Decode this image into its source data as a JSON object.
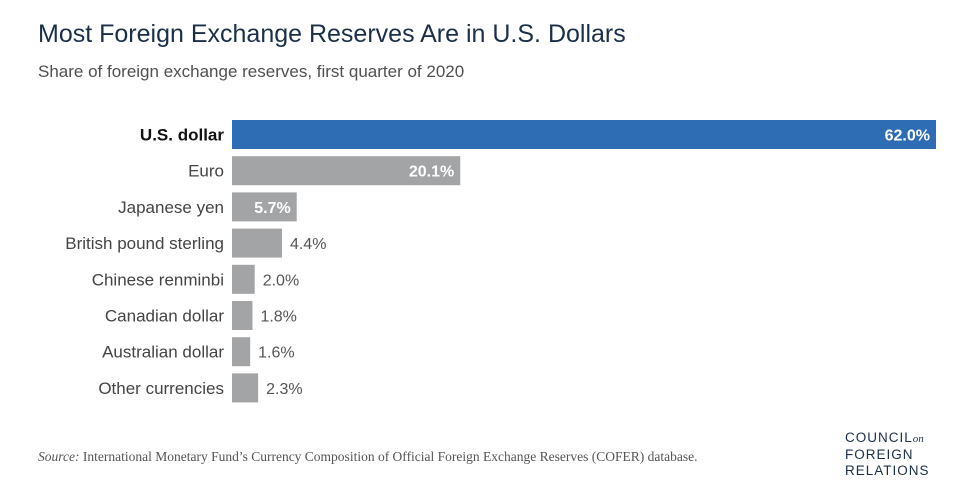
{
  "title": "Most Foreign Exchange Reserves Are in U.S. Dollars",
  "subtitle": "Share of foreign exchange reserves, first quarter of 2020",
  "source_label": "Source:",
  "source_text": "International Monetary Fund’s Currency Composition of Official Foreign Exchange Reserves (COFER) database.",
  "logo": {
    "line1": "COUNCIL",
    "on": "on",
    "line2": "FOREIGN",
    "line3": "RELATIONS"
  },
  "colors": {
    "highlight": "#2e6db4",
    "bar": "#a2a4a6",
    "label_inside": "#ffffff",
    "label_outside": "#555555"
  },
  "chart_data": {
    "type": "bar",
    "orientation": "horizontal",
    "title": "Most Foreign Exchange Reserves Are in U.S. Dollars",
    "subtitle": "Share of foreign exchange reserves, first quarter of 2020",
    "categories": [
      "U.S. dollar",
      "Euro",
      "Japanese yen",
      "British pound sterling",
      "Chinese renminbi",
      "Canadian dollar",
      "Australian dollar",
      "Other currencies"
    ],
    "values": [
      62.0,
      20.1,
      5.7,
      4.4,
      2.0,
      1.8,
      1.6,
      2.3
    ],
    "value_labels": [
      "62.0%",
      "20.1%",
      "5.7%",
      "4.4%",
      "2.0%",
      "1.8%",
      "1.6%",
      "2.3%"
    ],
    "highlight_index": 0,
    "xlim": [
      0,
      62.0
    ],
    "grid": false,
    "legend": "none"
  }
}
